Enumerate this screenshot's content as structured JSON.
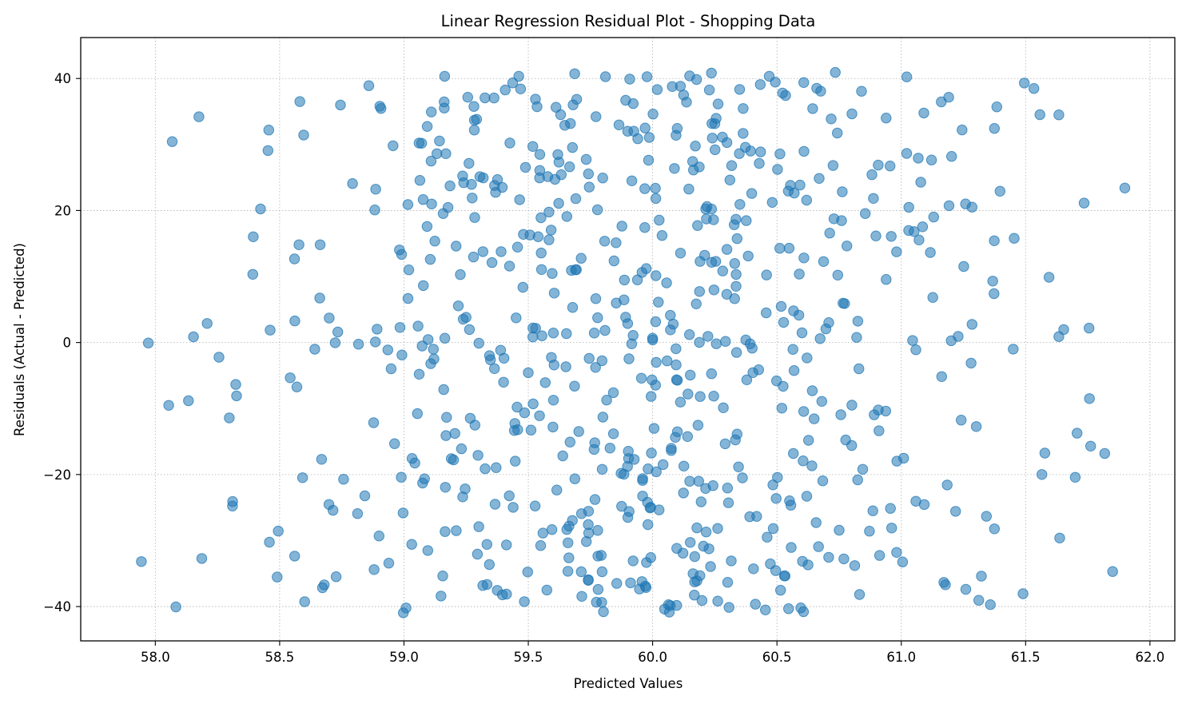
{
  "chart_data": {
    "type": "scatter",
    "title": "Linear Regression Residual Plot - Shopping Data",
    "xlabel": "Predicted Values",
    "ylabel": "Residuals (Actual - Predicted)",
    "xlim": [
      57.7,
      62.1
    ],
    "ylim": [
      -45.2,
      46.2
    ],
    "xticks": [
      58.0,
      58.5,
      59.0,
      59.5,
      60.0,
      60.5,
      61.0,
      61.5,
      62.0
    ],
    "xtick_labels": [
      "58.0",
      "58.5",
      "59.0",
      "59.5",
      "60.0",
      "60.5",
      "61.0",
      "61.5",
      "62.0"
    ],
    "yticks": [
      -40,
      -20,
      0,
      20,
      40
    ],
    "ytick_labels": [
      "−40",
      "−20",
      "0",
      "20",
      "40"
    ],
    "grid": true,
    "marker_color": "#1f77b4",
    "marker_alpha": 0.55,
    "point_count": 722,
    "seed": 20240917
  }
}
